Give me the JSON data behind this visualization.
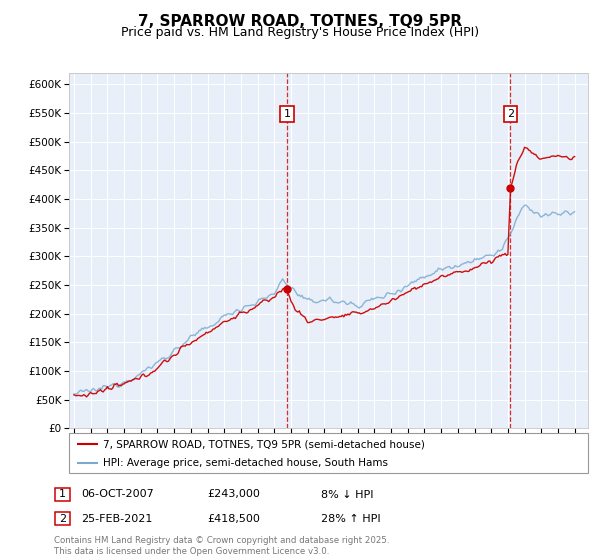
{
  "title": "7, SPARROW ROAD, TOTNES, TQ9 5PR",
  "subtitle": "Price paid vs. HM Land Registry's House Price Index (HPI)",
  "ylim": [
    0,
    620000
  ],
  "yticks": [
    0,
    50000,
    100000,
    150000,
    200000,
    250000,
    300000,
    350000,
    400000,
    450000,
    500000,
    550000,
    600000
  ],
  "xlim_start": 1994.7,
  "xlim_end": 2025.8,
  "background_color": "#e8eff8",
  "plot_bg": "#e8eff8",
  "grid_color": "#ffffff",
  "line_color_hpi": "#7aaad0",
  "line_color_price": "#cc0000",
  "marker1_x": 2007.76,
  "marker1_y": 243000,
  "marker2_x": 2021.15,
  "marker2_y": 418500,
  "legend1": "7, SPARROW ROAD, TOTNES, TQ9 5PR (semi-detached house)",
  "legend2": "HPI: Average price, semi-detached house, South Hams",
  "footer": "Contains HM Land Registry data © Crown copyright and database right 2025.\nThis data is licensed under the Open Government Licence v3.0.",
  "title_fontsize": 11,
  "subtitle_fontsize": 9,
  "tick_fontsize": 7.5,
  "ann1_date": "06-OCT-2007",
  "ann1_price": "£243,000",
  "ann1_hpi": "8% ↓ HPI",
  "ann2_date": "25-FEB-2021",
  "ann2_price": "£418,500",
  "ann2_hpi": "28% ↑ HPI"
}
